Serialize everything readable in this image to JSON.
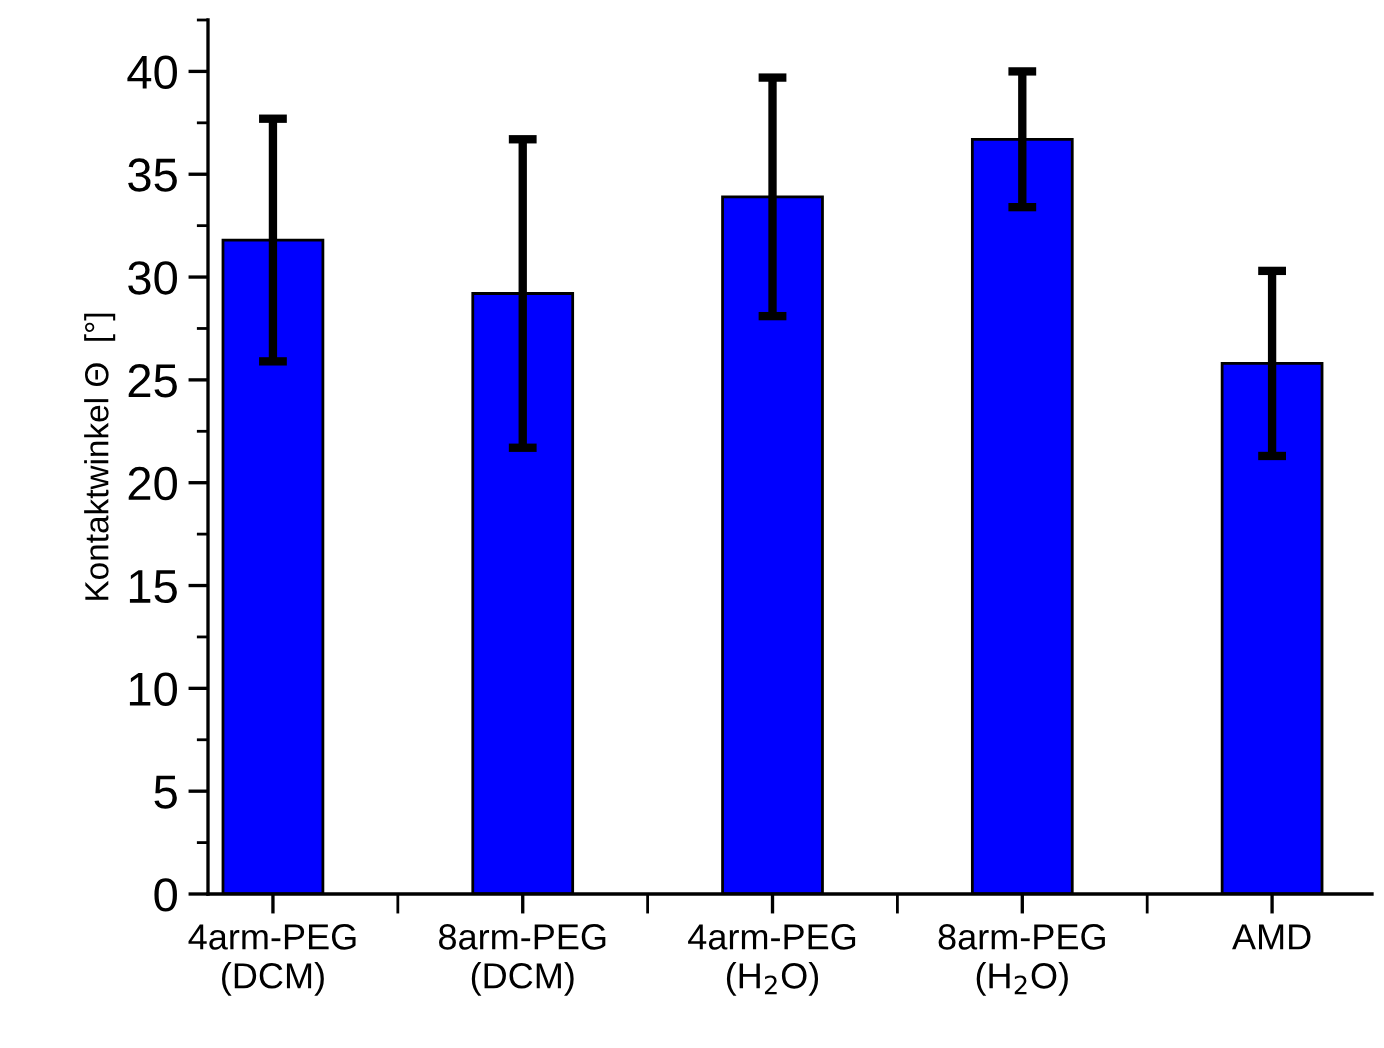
{
  "chart_data": {
    "type": "bar",
    "ylabel": "Kontaktwinkel Θ  [°]",
    "categories": [
      "4arm-PEG\n(DCM)",
      "8arm-PEG\n(DCM)",
      "4arm-PEG\n(H$_{2}$O)",
      "8arm-PEG\n(H$_{2}$O)",
      "AMD"
    ],
    "values": [
      31.8,
      29.2,
      33.9,
      36.7,
      25.8
    ],
    "errors": [
      5.9,
      7.5,
      5.8,
      3.3,
      4.5
    ],
    "color": "#0000ff",
    "ylim": [
      0,
      42.5
    ],
    "yticks": [
      0,
      5,
      10,
      15,
      20,
      25,
      30,
      35,
      40
    ],
    "grid": false,
    "legend": false
  }
}
